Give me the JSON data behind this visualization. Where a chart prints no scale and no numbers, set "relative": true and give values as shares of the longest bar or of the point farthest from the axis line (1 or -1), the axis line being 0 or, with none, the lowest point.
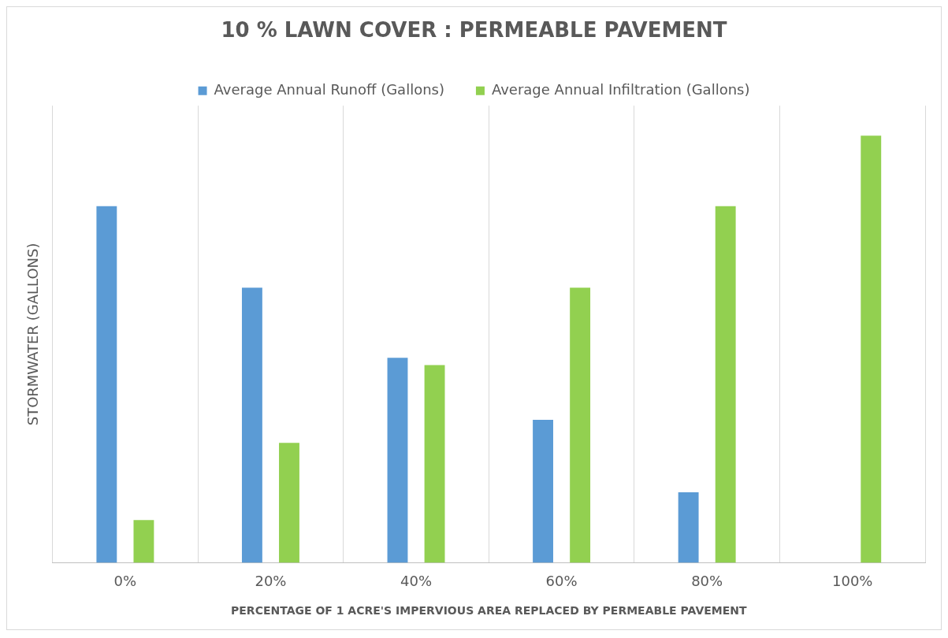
{
  "chart_data": {
    "type": "bar",
    "title": "10 % LAWN COVER : PERMEABLE PAVEMENT",
    "xlabel": "PERCENTAGE OF 1 ACRE'S IMPERVIOUS AREA REPLACED BY PERMEABLE PAVEMENT",
    "ylabel": "STORMWATER (GALLONS)",
    "relative": true,
    "categories": [
      "0%",
      "20%",
      "40%",
      "60%",
      "80%",
      "100%"
    ],
    "series": [
      {
        "name": "Average Annual Runoff (Gallons)",
        "color": "#5b9bd5",
        "values": [
          0.835,
          0.644,
          0.48,
          0.335,
          0.165,
          0
        ]
      },
      {
        "name": "Average Annual Infiltration (Gallons)",
        "color": "#92d050",
        "values": [
          0.1,
          0.281,
          0.463,
          0.644,
          0.835,
          1
        ]
      }
    ],
    "grid": "x",
    "legend": "top"
  }
}
